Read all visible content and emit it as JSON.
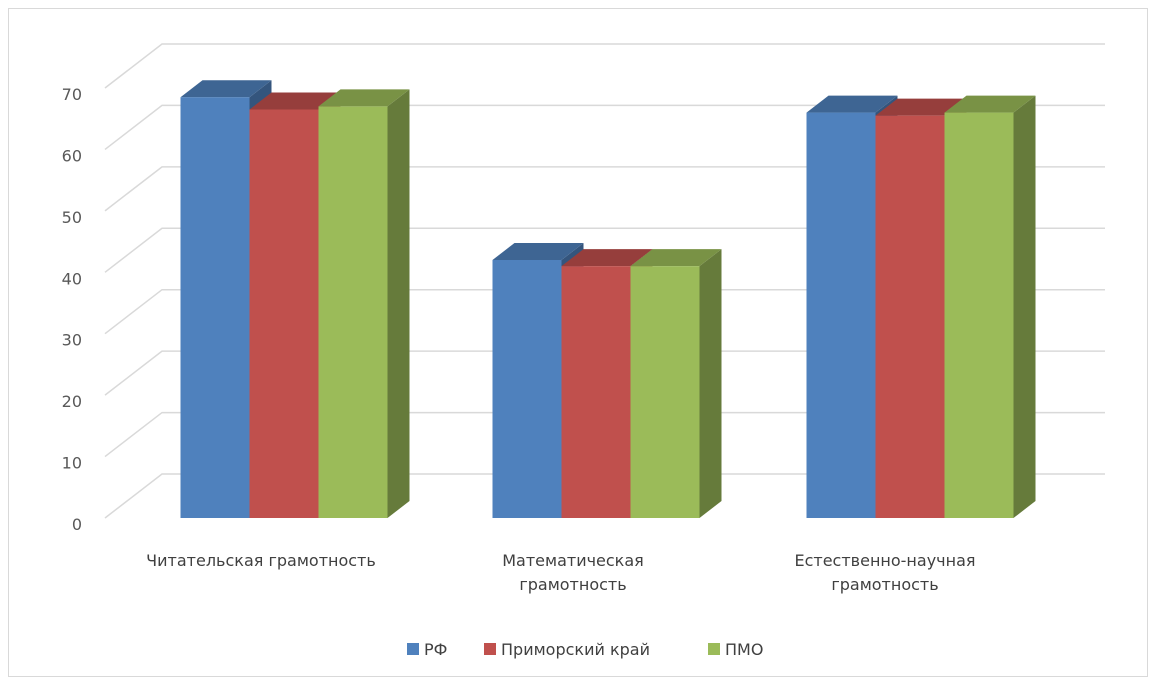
{
  "chart_data": {
    "type": "bar",
    "title": "",
    "xlabel": "",
    "ylabel": "",
    "ylim": [
      0,
      70
    ],
    "yticks": [
      0,
      10,
      20,
      30,
      40,
      50,
      60,
      70
    ],
    "grid": true,
    "three_d": true,
    "legend_position": "bottom",
    "categories": [
      "Читательская грамотность",
      "Математическая грамотность",
      "Естественно-научная грамотность"
    ],
    "category_label_lines": [
      [
        "Читательская грамотность"
      ],
      [
        "Математическая",
        "грамотность"
      ],
      [
        "Естественно-научная",
        "грамотность"
      ]
    ],
    "series": [
      {
        "name": "РФ",
        "color": "#4f81bd",
        "values": [
          68.5,
          42,
          66
        ]
      },
      {
        "name": "Приморский край",
        "color": "#c0504d",
        "values": [
          66.5,
          41,
          65.5
        ]
      },
      {
        "name": "ПМО",
        "color": "#9bbb59",
        "values": [
          67,
          41,
          66
        ]
      }
    ]
  }
}
